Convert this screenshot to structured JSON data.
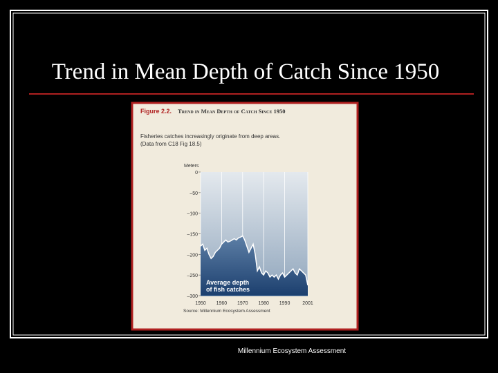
{
  "slide": {
    "title": "Trend in Mean Depth of Catch Since 1950",
    "footer": "Millennium Ecosystem Assessment"
  },
  "chart_data": {
    "type": "area",
    "figure_label": "Figure 2.2.",
    "title": "Trend in Mean Depth of Catch Since 1950",
    "subtitle": [
      "Fisheries catches increasingly originate from deep areas.",
      "(Data from C18 Fig 18.5)"
    ],
    "y_label": "Meters",
    "annotation": [
      "Average depth",
      "of fish catches"
    ],
    "source": "Source: Millennium Ecosystem Assessment",
    "x": [
      1950,
      1951,
      1952,
      1953,
      1954,
      1955,
      1956,
      1957,
      1958,
      1959,
      1960,
      1961,
      1962,
      1963,
      1964,
      1965,
      1966,
      1967,
      1968,
      1969,
      1970,
      1971,
      1972,
      1973,
      1974,
      1975,
      1976,
      1977,
      1978,
      1979,
      1980,
      1981,
      1982,
      1983,
      1984,
      1985,
      1986,
      1987,
      1988,
      1989,
      1990,
      1991,
      1992,
      1993,
      1994,
      1995,
      1996,
      1997,
      1998,
      1999,
      2000,
      2001
    ],
    "values": [
      -180,
      -175,
      -190,
      -185,
      -200,
      -210,
      -205,
      -195,
      -190,
      -185,
      -175,
      -170,
      -165,
      -170,
      -168,
      -165,
      -162,
      -165,
      -160,
      -158,
      -155,
      -165,
      -180,
      -195,
      -185,
      -175,
      -200,
      -240,
      -230,
      -245,
      -250,
      -240,
      -245,
      -255,
      -250,
      -255,
      -250,
      -260,
      -250,
      -245,
      -255,
      -250,
      -245,
      -240,
      -235,
      -245,
      -250,
      -235,
      -240,
      -245,
      -250,
      -275
    ],
    "color": "#1f4f86",
    "xlim": [
      1950,
      2001
    ],
    "xticks": [
      1950,
      1960,
      1970,
      1980,
      1990,
      2001
    ],
    "ylim": [
      -300,
      0
    ],
    "yticks": [
      {
        "value": 0,
        "label": "0"
      },
      {
        "value": -50,
        "label": "–50"
      },
      {
        "value": -100,
        "label": "–100"
      },
      {
        "value": -150,
        "label": "–150"
      },
      {
        "value": -200,
        "label": "–200"
      },
      {
        "value": -250,
        "label": "–250"
      },
      {
        "value": -300,
        "label": "–300"
      }
    ],
    "grid": true
  }
}
